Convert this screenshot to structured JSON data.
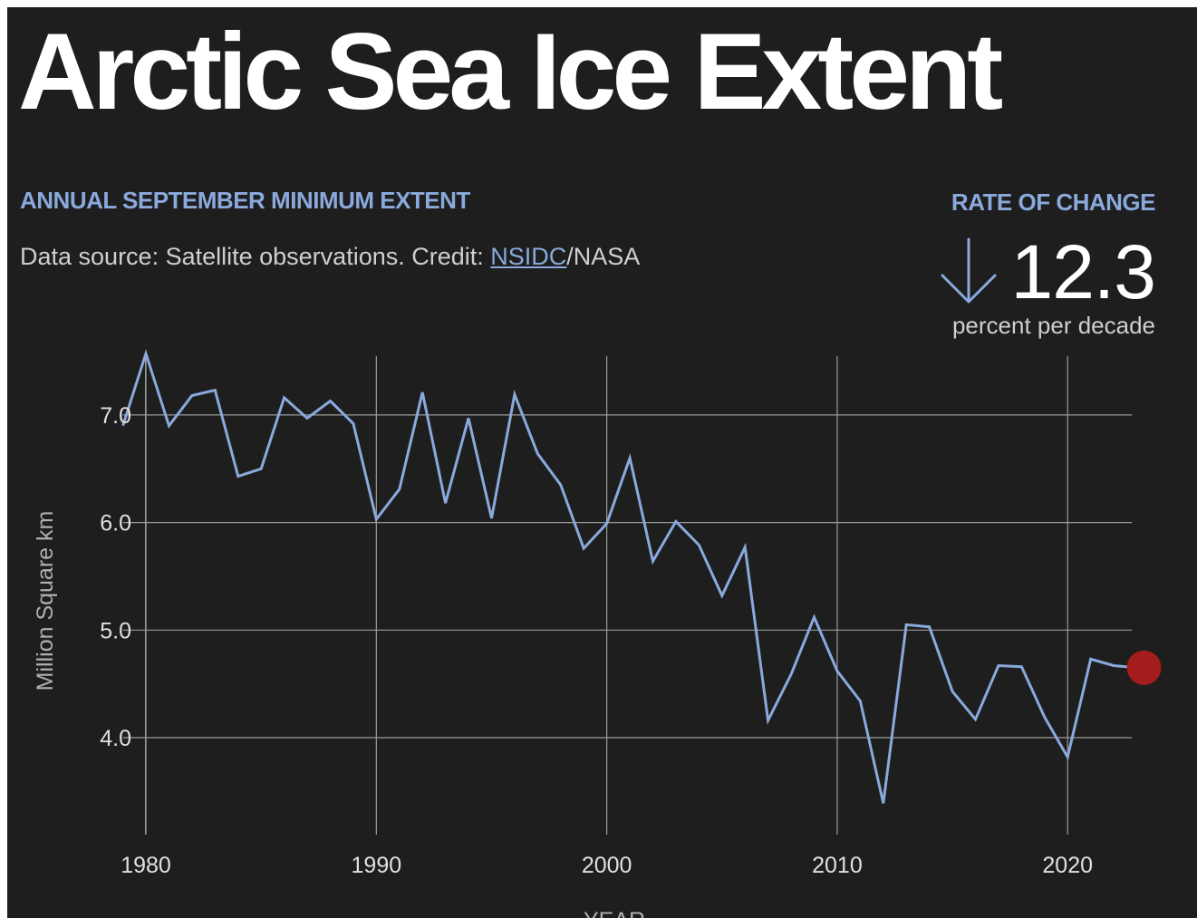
{
  "title": "Arctic Sea Ice Extent",
  "subtitle": "ANNUAL SEPTEMBER MINIMUM EXTENT",
  "credit": {
    "prefix": "Data source: Satellite observations. Credit: ",
    "link": "NSIDC",
    "suffix": "/NASA"
  },
  "rate": {
    "heading": "RATE OF CHANGE",
    "direction_icon": "arrow-down-icon",
    "value": "12.3",
    "unit": "percent per decade"
  },
  "colors": {
    "background": "#1e1e1e",
    "line": "#8aa9dc",
    "highlight": "#a51c1c",
    "grid": "#9a9a9a"
  },
  "chart_data": {
    "type": "line",
    "title": "ANNUAL SEPTEMBER MINIMUM EXTENT",
    "xlabel": "YEAR",
    "ylabel": "Million Square km",
    "xlim": [
      1979,
      2023
    ],
    "ylim": [
      3.3,
      7.6
    ],
    "x_ticks": [
      1980,
      1990,
      2000,
      2010,
      2020
    ],
    "y_ticks": [
      4.0,
      5.0,
      6.0,
      7.0
    ],
    "y_tick_labels": [
      "4.0",
      "5.0",
      "6.0",
      "7.0"
    ],
    "grid": true,
    "highlight_last_point": true,
    "x": [
      1979,
      1980,
      1981,
      1982,
      1983,
      1984,
      1985,
      1986,
      1987,
      1988,
      1989,
      1990,
      1991,
      1992,
      1993,
      1994,
      1995,
      1996,
      1997,
      1998,
      1999,
      2000,
      2001,
      2002,
      2003,
      2004,
      2005,
      2006,
      2007,
      2008,
      2009,
      2010,
      2011,
      2012,
      2013,
      2014,
      2015,
      2016,
      2017,
      2018,
      2019,
      2020,
      2021,
      2022,
      2023
    ],
    "values": [
      6.9,
      7.57,
      6.9,
      7.18,
      7.23,
      6.43,
      6.5,
      7.16,
      6.97,
      7.13,
      6.92,
      6.03,
      6.31,
      7.21,
      6.18,
      6.97,
      6.04,
      7.19,
      6.64,
      6.35,
      5.76,
      5.99,
      6.6,
      5.64,
      6.01,
      5.79,
      5.32,
      5.77,
      4.16,
      4.59,
      5.12,
      4.62,
      4.34,
      3.39,
      5.05,
      5.03,
      4.43,
      4.17,
      4.67,
      4.66,
      4.19,
      3.82,
      4.73,
      4.67,
      4.65
    ]
  }
}
